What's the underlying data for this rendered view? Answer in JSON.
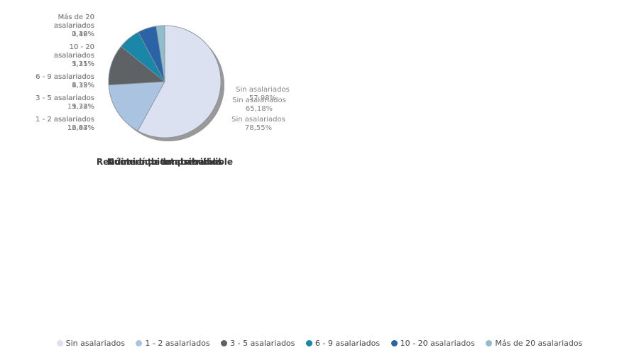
{
  "palette": {
    "slice_colors": [
      "#DBE1F1",
      "#A9C3E0",
      "#5F6264",
      "#1A87A8",
      "#2A63A6",
      "#8FBDCC"
    ],
    "slice_border": "#8B929E",
    "shadow": "#999999",
    "label_text": "#848484",
    "title_text": "#383838"
  },
  "legend": {
    "items": [
      {
        "label": "Sin asalariados",
        "color": "#DBE1F1"
      },
      {
        "label": "1 - 2 asalariados",
        "color": "#A9C3E0"
      },
      {
        "label": "3 - 5 asalariados",
        "color": "#5F6264"
      },
      {
        "label": "6 - 9 asalariados",
        "color": "#1A87A8"
      },
      {
        "label": "10 - 20 asalariados",
        "color": "#2A63A6"
      },
      {
        "label": "Más de 20 asalariados",
        "color": "#8FBDCC"
      }
    ]
  },
  "chart_data": [
    {
      "type": "pie",
      "title": "Número de empresarios",
      "legend_position": "bottom",
      "start_angle_deg": 0,
      "direction": "clockwise",
      "categories": [
        "Sin asalariados",
        "1 - 2 asalariados",
        "3 - 5 asalariados",
        "6 - 9 asalariados",
        "10 - 20 asalariados",
        "Más de 20 asalariados"
      ],
      "values": [
        78.55,
        12.44,
        5.32,
        2.12,
        1.25,
        0.32
      ],
      "left_labels": [
        [
          "Más de 20",
          "asalariados",
          "0,32%"
        ],
        [
          "10 - 20",
          "asalariados",
          "1,25%"
        ],
        [
          "6 - 9 asalariados",
          "2,12%"
        ],
        [
          "3 - 5 asalariados",
          "5,32%"
        ],
        [
          "1 - 2 asalariados",
          "12,44%"
        ]
      ],
      "right_label": [
        "Sin asalariados",
        "78,55%"
      ]
    },
    {
      "type": "pie",
      "title": "Rendimiento total atribuible",
      "legend_position": "bottom",
      "start_angle_deg": 0,
      "direction": "clockwise",
      "categories": [
        "Sin asalariados",
        "1 - 2 asalariados",
        "3 - 5 asalariados",
        "6 - 9 asalariados",
        "10 - 20 asalariados",
        "Más de 20 asalariados"
      ],
      "values": [
        65.18,
        16.83,
        9.33,
        4.35,
        3.11,
        1.19
      ],
      "left_labels": [
        [
          "Más de 20",
          "asalariados",
          "1,19%"
        ],
        [
          "10 - 20",
          "asalariados",
          "3,11%"
        ],
        [
          "6 - 9 asalariados",
          "4,35%"
        ],
        [
          "3 - 5 asalariados",
          "9,33%"
        ],
        [
          "1 - 2 asalariados",
          "16,83%"
        ]
      ],
      "right_label": [
        "Sin asalariados",
        "65,18%"
      ]
    },
    {
      "type": "pie",
      "title": "Cuota líquida atribuible",
      "legend_position": "bottom",
      "start_angle_deg": 0,
      "direction": "clockwise",
      "categories": [
        "Sin asalariados",
        "1 - 2 asalariados",
        "3 - 5 asalariados",
        "6 - 9 asalariados",
        "10 - 20 asalariados",
        "Más de 20 asalariados"
      ],
      "values": [
        57.98,
        16.07,
        11.74,
        6.39,
        5.35,
        2.46
      ],
      "left_labels": [
        [
          "Más de 20",
          "asalariados",
          "2,46%"
        ],
        [
          "10 - 20",
          "asalariados",
          "5,35%"
        ],
        [
          "6 - 9 asalariados",
          "6,39%"
        ],
        [
          "3 - 5 asalariados",
          "11,74%"
        ],
        [
          "1 - 2 asalariados",
          "16,07%"
        ]
      ],
      "right_label": [
        "Sin asalariados",
        "57,98%"
      ]
    }
  ]
}
